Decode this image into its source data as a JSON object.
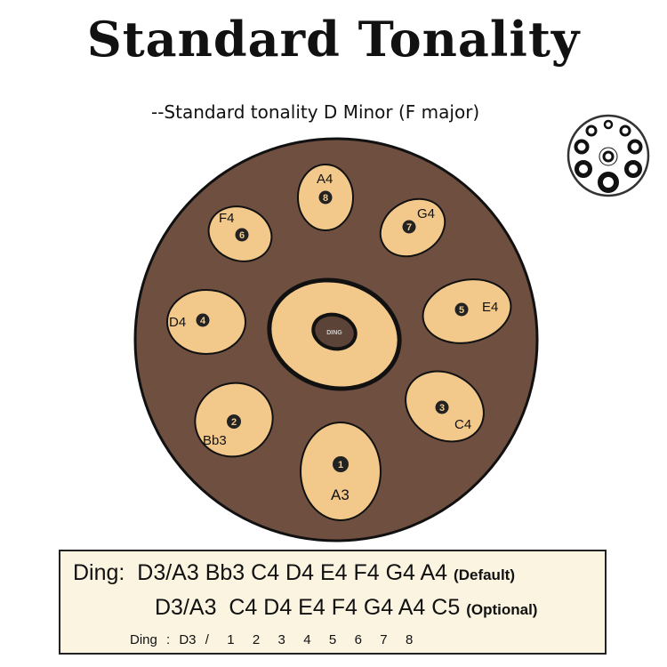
{
  "title": "Standard Tonality",
  "subtitle": "--Standard tonality D Minor (F major)",
  "colors": {
    "body": "#6e4f40",
    "pad": "#f2c98a",
    "outline": "#111111",
    "box": "#fbf4e1"
  },
  "layout_icon": "handpan-top-view-icon",
  "ding": {
    "label": "DING"
  },
  "pads": [
    {
      "number": "1",
      "note": "A3"
    },
    {
      "number": "2",
      "note": "Bb3"
    },
    {
      "number": "3",
      "note": "C4"
    },
    {
      "number": "4",
      "note": "D4"
    },
    {
      "number": "5",
      "note": "E4"
    },
    {
      "number": "6",
      "note": "F4"
    },
    {
      "number": "7",
      "note": "G4"
    },
    {
      "number": "8",
      "note": "A4"
    }
  ],
  "legend": {
    "row1_prefix": "Ding:",
    "row1_notes": "D3/A3 Bb3 C4 D4 E4 F4 G4 A4",
    "row1_tag": "(Default)",
    "row2_notes": "D3/A3  C4 D4 E4 F4 G4 A4 C5",
    "row2_tag": "(Optional)",
    "row3": "Ding : D3 /  1  2  3  4  5  6  7  8"
  }
}
